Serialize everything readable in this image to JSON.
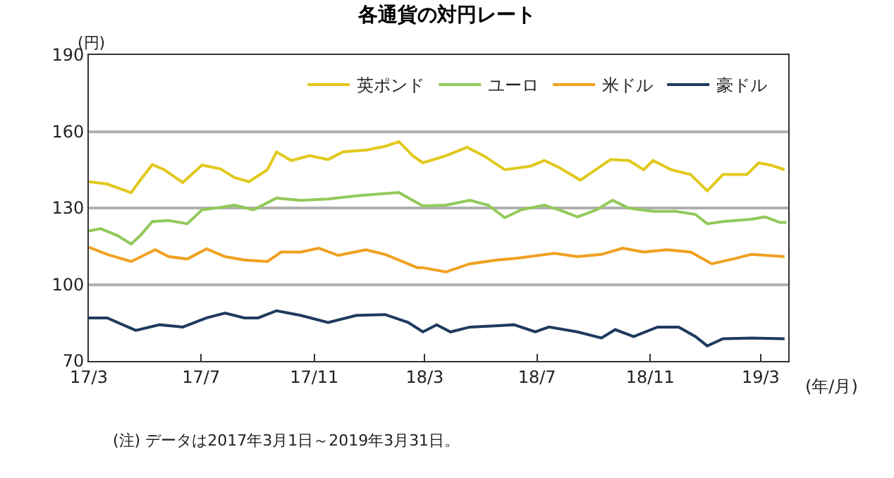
{
  "chart_data": {
    "type": "line",
    "title": "各通貨の対円レート",
    "ylabel": "(円)",
    "xlabel": "(年/月)",
    "annotations": [
      "(注) データは2017年3月1日～2019年3月31日。"
    ],
    "xlim": [
      "2017-03-01",
      "2019-03-31"
    ],
    "xticks": [
      {
        "value": "2017-03-01",
        "label": "17/3"
      },
      {
        "value": "2017-07-01",
        "label": "17/7"
      },
      {
        "value": "2017-11-01",
        "label": "17/11"
      },
      {
        "value": "2018-03-01",
        "label": "18/3"
      },
      {
        "value": "2018-07-01",
        "label": "18/7"
      },
      {
        "value": "2018-11-01",
        "label": "18/11"
      },
      {
        "value": "2019-03-01",
        "label": "19/3"
      }
    ],
    "ylim": [
      70,
      190
    ],
    "yticks": [
      70,
      100,
      130,
      160,
      190
    ],
    "grid": "y",
    "legend": "top right",
    "line_style": "solid",
    "marker": "none",
    "series": [
      {
        "name": "英ポンド",
        "color": "#e2c81c",
        "x": [
          "2017-03-01",
          "2017-03-21",
          "2017-04-16",
          "2017-04-26",
          "2017-05-09",
          "2017-05-22",
          "2017-06-11",
          "2017-07-02",
          "2017-07-22",
          "2017-08-06",
          "2017-08-22",
          "2017-09-11",
          "2017-09-21",
          "2017-10-07",
          "2017-10-27",
          "2017-11-16",
          "2017-12-02",
          "2017-12-27",
          "2018-01-17",
          "2018-02-01",
          "2018-02-16",
          "2018-02-27",
          "2018-03-24",
          "2018-04-16",
          "2018-05-04",
          "2018-05-27",
          "2018-06-24",
          "2018-07-09",
          "2018-07-25",
          "2018-08-17",
          "2018-09-04",
          "2018-09-19",
          "2018-10-09",
          "2018-10-25",
          "2018-11-04",
          "2018-11-24",
          "2018-12-15",
          "2019-01-02",
          "2019-01-19",
          "2019-02-14",
          "2019-02-27",
          "2019-03-12",
          "2019-03-27"
        ],
        "values": [
          140.3,
          139.4,
          136,
          141,
          147,
          145,
          140,
          146.8,
          145.3,
          142,
          140.3,
          145,
          152,
          148.6,
          150.5,
          149,
          152,
          152.7,
          154.2,
          156,
          150.5,
          147.7,
          150.5,
          153.8,
          150.5,
          145,
          146.4,
          148.6,
          145.9,
          140.9,
          145.3,
          149,
          148.6,
          145,
          148.6,
          145,
          143.1,
          136.7,
          143.1,
          143.1,
          147.7,
          146.8,
          145
        ]
      },
      {
        "name": "ユーロ",
        "color": "#92c95a",
        "x": [
          "2017-03-01",
          "2017-03-14",
          "2017-04-01",
          "2017-04-16",
          "2017-04-26",
          "2017-05-09",
          "2017-05-27",
          "2017-06-16",
          "2017-07-02",
          "2017-07-22",
          "2017-08-06",
          "2017-08-27",
          "2017-09-21",
          "2017-10-17",
          "2017-11-16",
          "2017-12-17",
          "2018-01-07",
          "2018-02-01",
          "2018-02-16",
          "2018-02-27",
          "2018-03-24",
          "2018-04-19",
          "2018-05-09",
          "2018-05-27",
          "2018-06-14",
          "2018-07-09",
          "2018-07-25",
          "2018-08-14",
          "2018-09-04",
          "2018-09-21",
          "2018-10-09",
          "2018-11-04",
          "2018-11-29",
          "2018-12-20",
          "2019-01-02",
          "2019-01-19",
          "2019-02-19",
          "2019-03-06",
          "2019-03-22",
          "2019-03-29"
        ],
        "values": [
          121,
          121.9,
          119.2,
          115.9,
          119.2,
          124.7,
          125.1,
          123.8,
          129.3,
          130.2,
          131.1,
          129.3,
          133.9,
          133,
          133.5,
          134.8,
          135.4,
          136.1,
          133,
          130.8,
          131.1,
          133,
          131.1,
          126.2,
          129.3,
          131.1,
          129.3,
          126.5,
          129.3,
          133,
          129.9,
          128.7,
          128.7,
          127.5,
          123.8,
          124.7,
          125.6,
          126.5,
          124.3,
          124.3
        ]
      },
      {
        "name": "米ドル",
        "color": "#f0a020",
        "x": [
          "2017-03-01",
          "2017-03-21",
          "2017-04-16",
          "2017-05-12",
          "2017-05-27",
          "2017-06-16",
          "2017-07-07",
          "2017-07-27",
          "2017-08-17",
          "2017-09-11",
          "2017-09-26",
          "2017-10-17",
          "2017-11-06",
          "2017-11-27",
          "2017-12-27",
          "2018-01-17",
          "2018-02-01",
          "2018-02-21",
          "2018-02-27",
          "2018-03-24",
          "2018-04-19",
          "2018-05-19",
          "2018-06-09",
          "2018-07-20",
          "2018-08-14",
          "2018-09-09",
          "2018-10-02",
          "2018-10-25",
          "2018-11-19",
          "2018-12-15",
          "2019-01-07",
          "2019-01-30",
          "2019-02-19",
          "2019-03-27"
        ],
        "values": [
          114.6,
          111.8,
          109,
          113.6,
          110.9,
          110,
          114,
          110.9,
          109.6,
          109,
          112.7,
          112.7,
          114.2,
          111.4,
          113.6,
          111.8,
          109.6,
          106.6,
          106.6,
          104.9,
          108.1,
          109.6,
          110.3,
          112.2,
          110.9,
          111.8,
          114.2,
          112.7,
          113.6,
          112.7,
          108.1,
          110,
          111.8,
          110.9
        ]
      },
      {
        "name": "豪ドル",
        "color": "#1f3a5f",
        "x": [
          "2017-03-01",
          "2017-03-21",
          "2017-04-21",
          "2017-05-17",
          "2017-06-11",
          "2017-07-07",
          "2017-07-27",
          "2017-08-17",
          "2017-09-01",
          "2017-09-21",
          "2017-10-17",
          "2017-11-16",
          "2017-12-17",
          "2018-01-17",
          "2018-02-11",
          "2018-02-27",
          "2018-03-14",
          "2018-03-29",
          "2018-04-19",
          "2018-05-19",
          "2018-06-06",
          "2018-06-29",
          "2018-07-14",
          "2018-08-14",
          "2018-09-09",
          "2018-09-24",
          "2018-10-14",
          "2018-11-09",
          "2018-12-02",
          "2018-12-20",
          "2019-01-02",
          "2019-01-19",
          "2019-02-19",
          "2019-03-27"
        ],
        "values": [
          86.9,
          86.9,
          82,
          84.2,
          83.3,
          86.9,
          88.8,
          86.9,
          86.9,
          89.7,
          87.9,
          85.1,
          87.9,
          88.2,
          85.1,
          81.4,
          84.2,
          81.4,
          83.3,
          83.8,
          84.2,
          81.4,
          83.3,
          81.4,
          79,
          82.3,
          79.6,
          83.3,
          83.3,
          79.6,
          75.9,
          78.7,
          79,
          78.7
        ]
      }
    ]
  }
}
